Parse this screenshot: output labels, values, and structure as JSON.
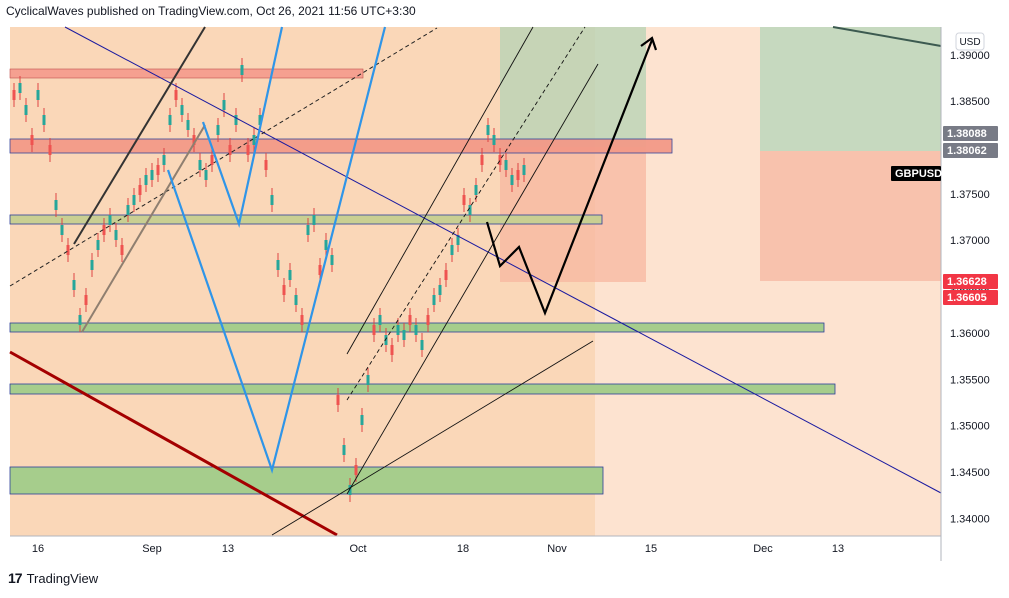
{
  "header": {
    "text": "CyclicalWaves published on TradingView.com, Oct 26, 2021 11:56 UTC+3:30"
  },
  "footer": {
    "brand": "TradingView",
    "logo_glyph": "17"
  },
  "chart_data": {
    "type": "candlestick",
    "symbol": "GBPUSD",
    "currency_label": "USD",
    "y_ticks": [
      "1.39000",
      "1.38500",
      "1.38000",
      "1.37500",
      "1.37000",
      "1.36500",
      "1.36000",
      "1.35500",
      "1.35000",
      "1.34500",
      "1.34000"
    ],
    "x_ticks": [
      "16",
      "Sep",
      "13",
      "Oct",
      "18",
      "Nov",
      "15",
      "Dec",
      "13"
    ],
    "ylim": [
      1.3381,
      1.393
    ],
    "price_labels": [
      {
        "value": "1.38088",
        "bg": "#787b86",
        "fg": "#ffffff"
      },
      {
        "value": "1.38062",
        "bg": "#787b86",
        "fg": "#ffffff"
      },
      {
        "value": "GBPUSD",
        "bg": "#000000",
        "fg": "#ffffff"
      },
      {
        "value": "1.36628",
        "bg": "#f23645",
        "fg": "#ffffff"
      },
      {
        "value": "1.36605",
        "bg": "#f23645",
        "fg": "#ffffff"
      }
    ],
    "colors": {
      "up": "#26a69a",
      "down": "#ef5350",
      "trend": "#1a1aa0",
      "wave": "#2f95e8",
      "channel": "#000000",
      "support": "#a0d08a",
      "resistance": "#f5a090"
    }
  }
}
